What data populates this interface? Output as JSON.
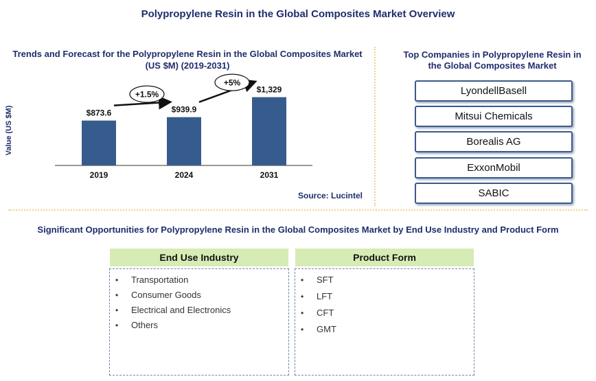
{
  "main_title": "Polypropylene Resin in the Global Composites Market Overview",
  "chart_title": "Trends and Forecast for the Polypropylene Resin in the Global Composites Market (US $M) (2019-2031)",
  "source": "Source: Lucintel",
  "chart_data": {
    "type": "bar",
    "categories": [
      "2019",
      "2024",
      "2031"
    ],
    "values": [
      873.6,
      939.9,
      1329
    ],
    "value_labels": [
      "$873.6",
      "$939.9",
      "$1,329"
    ],
    "ylabel": "Value (US $M)",
    "ylim": [
      0,
      1550
    ],
    "growth_annotations": [
      "+1.5%",
      "+5%"
    ],
    "bar_color": "#365c8d"
  },
  "companies": {
    "title": "Top Companies in Polypropylene Resin in the Global Composites Market",
    "items": [
      "LyondellBasell",
      "Mitsui Chemicals",
      "Borealis AG",
      "ExxonMobil",
      "SABIC"
    ]
  },
  "opportunities": {
    "title": "Significant Opportunities for Polypropylene Resin in the Global Composites Market by End Use Industry and Product Form",
    "end_use": {
      "header": "End Use Industry",
      "items": [
        "Transportation",
        "Consumer Goods",
        "Electrical and Electronics",
        "Others"
      ]
    },
    "product_form": {
      "header": "Product Form",
      "items": [
        "SFT",
        "LFT",
        "CFT",
        "GMT"
      ]
    }
  },
  "colors": {
    "header_green": "#d6ecb4",
    "title_blue": "#1f2d6b",
    "bar_blue": "#365c8d"
  }
}
